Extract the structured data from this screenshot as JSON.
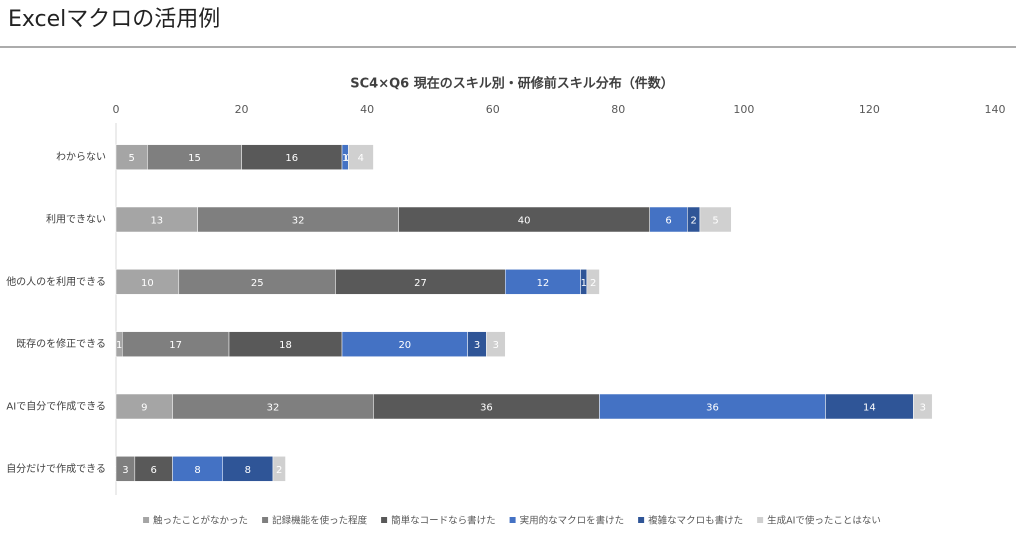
{
  "page": {
    "title": "Excelマクロの活用例"
  },
  "chart_data": {
    "type": "stacked-bar-horizontal",
    "title": "SC4×Q6 現在のスキル別・研修前スキル分布（件数）",
    "categories": [
      "わからない",
      "利用できない",
      "他の人のを利用できる",
      "既存のを修正できる",
      "AIで自分で作成できる",
      "自分だけで作成できる"
    ],
    "series": [
      {
        "name": "触ったことがなかった",
        "color": "#a5a5a5",
        "values": [
          5,
          13,
          10,
          1,
          9,
          0
        ]
      },
      {
        "name": "記録機能を使った程度",
        "color": "#7f7f7f",
        "values": [
          15,
          32,
          25,
          17,
          32,
          3
        ]
      },
      {
        "name": "簡単なコードなら書けた",
        "color": "#595959",
        "values": [
          16,
          40,
          27,
          18,
          36,
          6
        ]
      },
      {
        "name": "実用的なマクロを書けた",
        "color": "#4472c4",
        "values": [
          1,
          6,
          12,
          20,
          36,
          8
        ]
      },
      {
        "name": "複雑なマクロも書けた",
        "color": "#2f5597",
        "values": [
          0,
          2,
          1,
          3,
          14,
          8
        ]
      },
      {
        "name": "生成AIで使ったことはない",
        "color": "#d0d0d0",
        "values": [
          4,
          5,
          2,
          3,
          3,
          2
        ]
      }
    ],
    "xlim": [
      0,
      140
    ],
    "xticks": [
      0,
      20,
      40,
      60,
      80,
      100,
      120,
      140
    ],
    "grid": false,
    "legend": "bottom"
  }
}
